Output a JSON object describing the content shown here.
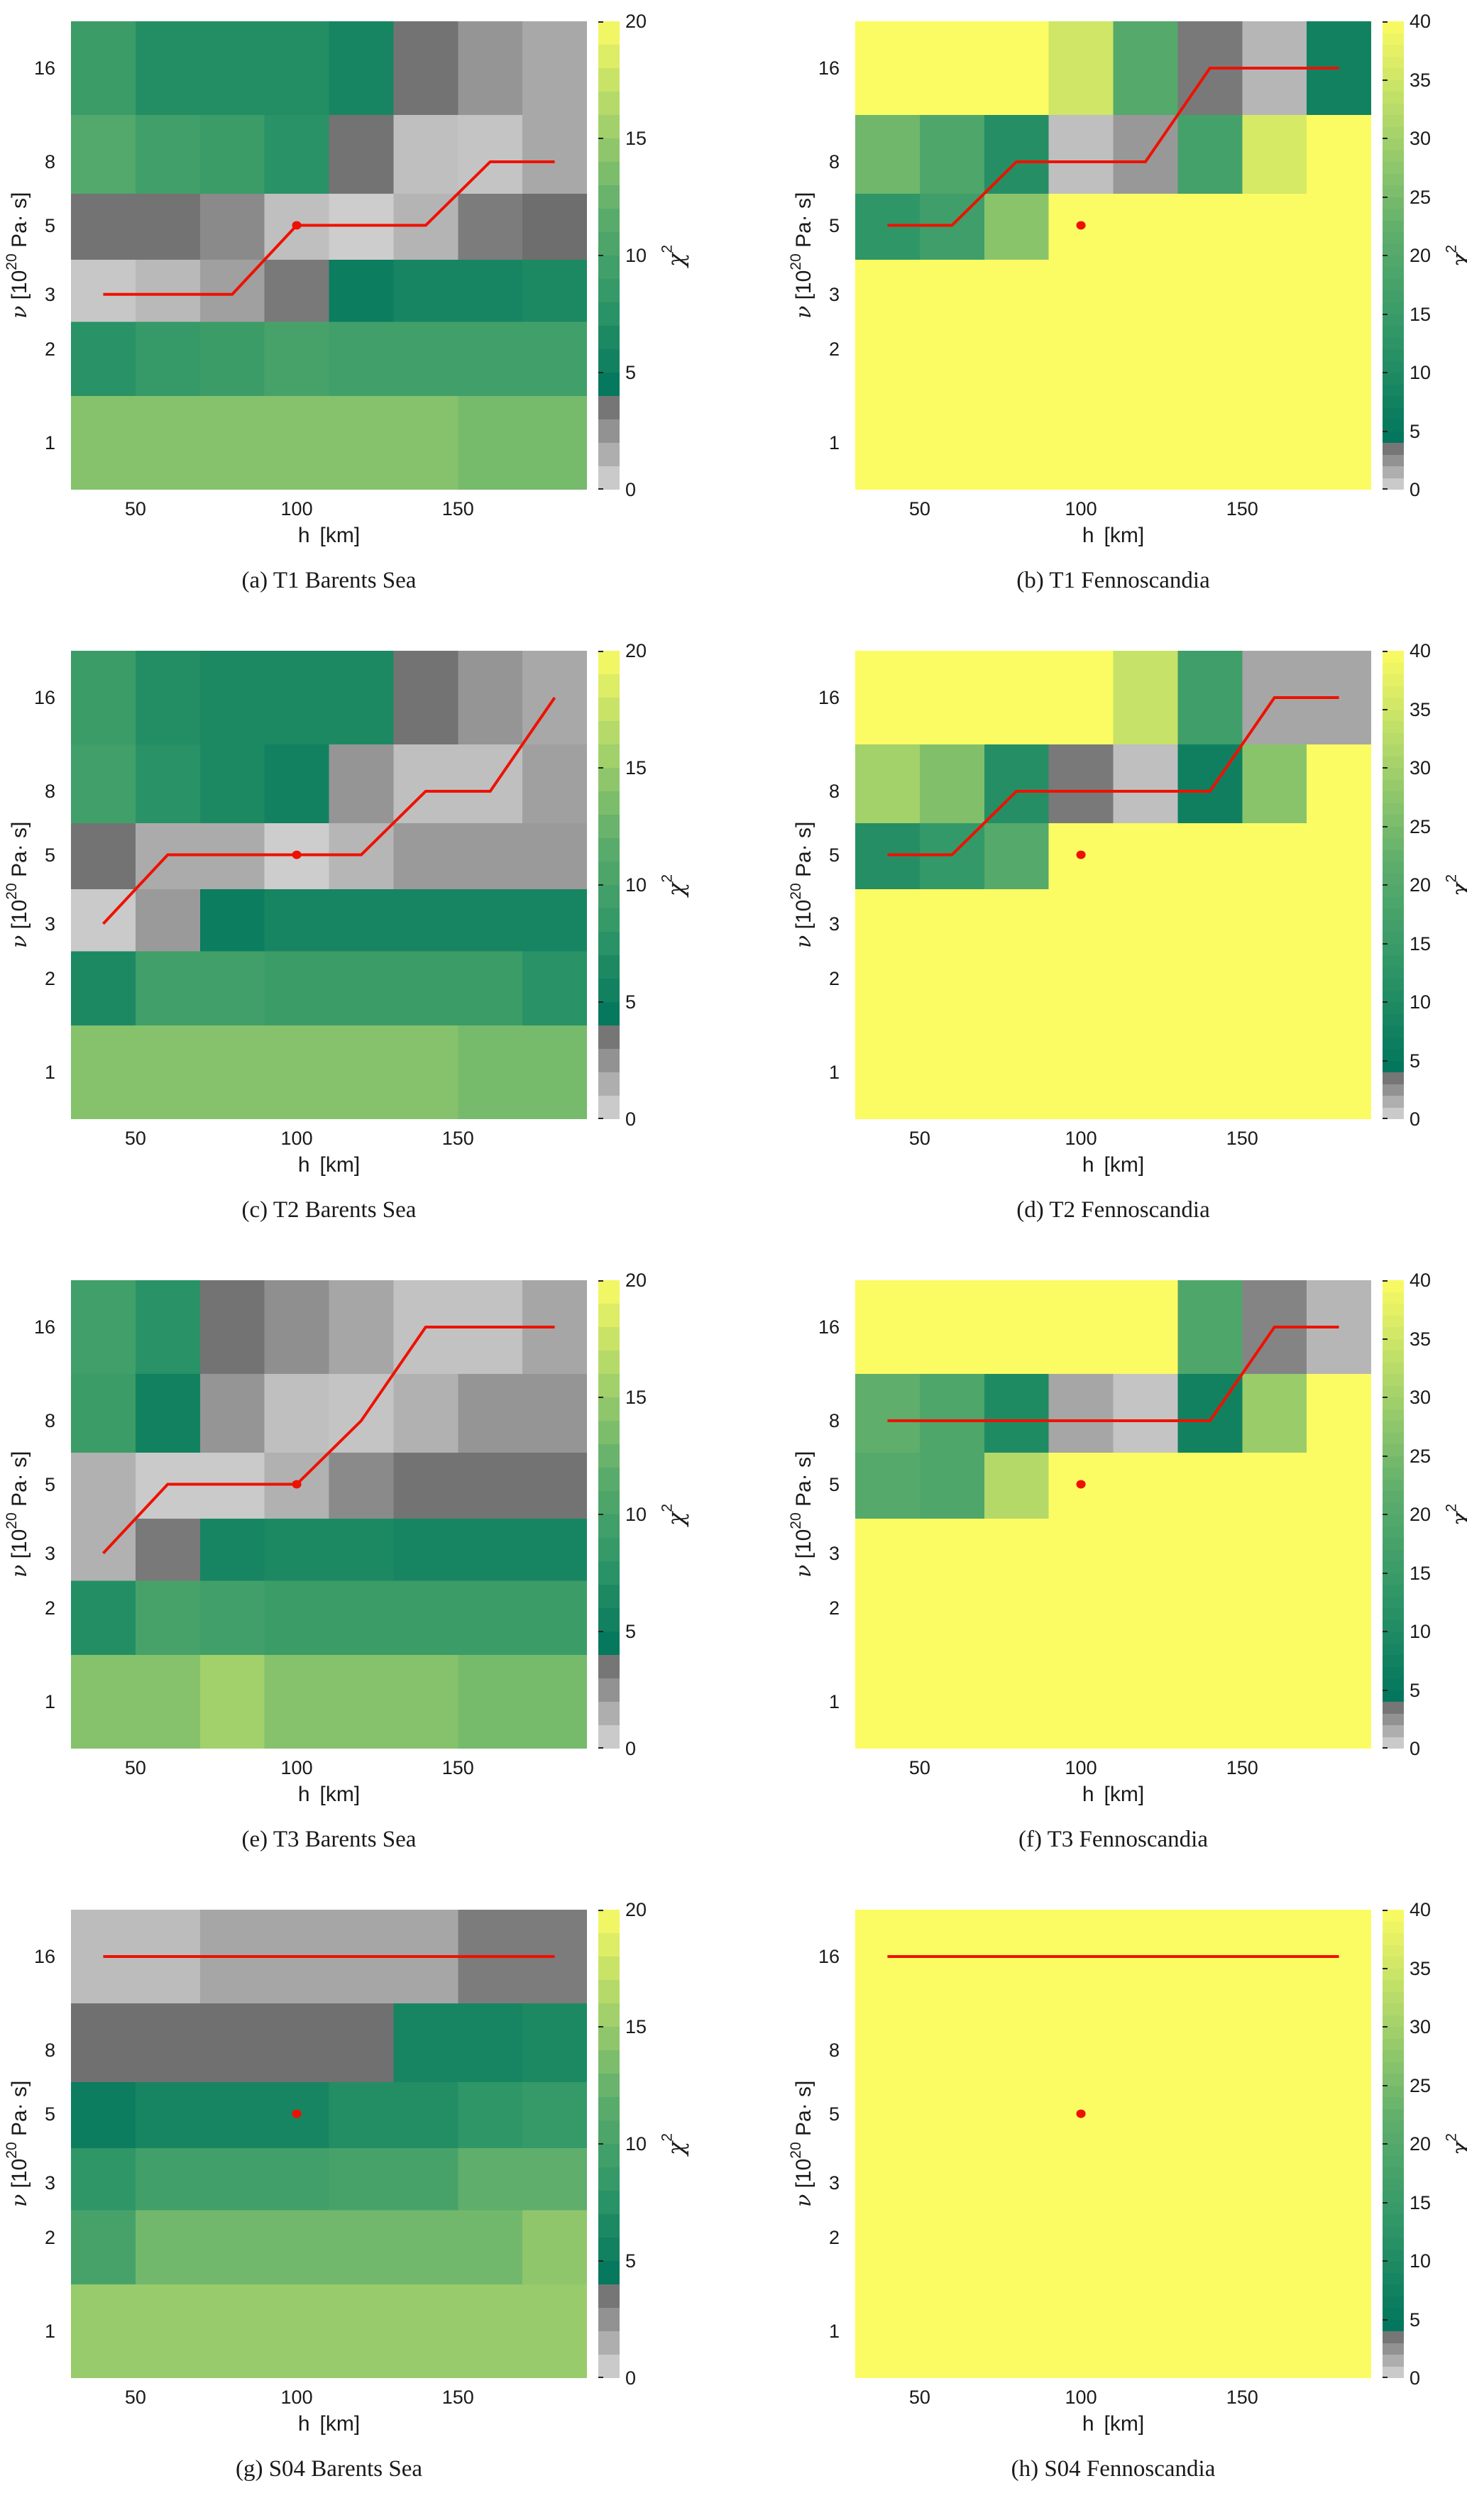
{
  "figure": {
    "description": "Grid of eight chi-squared misfit heatmaps over lithosphere thickness h and mantle viscosity nu, for ice models T1, T2, T3, S04 in regions Barents Sea and Fennoscandia",
    "background": "#ffffff"
  },
  "axes": {
    "xlabel_h": "h",
    "xlabel_unit": "[km]",
    "ylabel_nu": "ν",
    "ylabel_open": " [10",
    "ylabel_exp": "20",
    "ylabel_close": " Pa· s]",
    "xticks": [
      50,
      100,
      150
    ],
    "yticks": [
      16,
      8,
      5,
      3,
      2,
      1
    ],
    "x_range_km": [
      30,
      190
    ],
    "y_scale": "log2, cell edges at midpoints of 1,2,3,5,8,16"
  },
  "colorbar": {
    "label_chi": "χ",
    "label_exp": "2",
    "left_ticks": [
      0,
      5,
      10,
      15,
      20
    ],
    "right_ticks": [
      0,
      5,
      10,
      15,
      20,
      25,
      30,
      35,
      40
    ]
  },
  "colormap": {
    "gray_threshold": 4,
    "gray_low": "#d8d8d8",
    "gray_high": "#686868",
    "green_stops": [
      [
        0,
        "#00745c"
      ],
      [
        0.25,
        "#2f9667"
      ],
      [
        0.5,
        "#5fae6c"
      ],
      [
        0.75,
        "#abd56a"
      ],
      [
        1,
        "#fbfb63"
      ]
    ]
  },
  "colors": {
    "red_line": "#ee1100",
    "red_dot": "#ee1100"
  },
  "chart_data": [
    {
      "type": "heatmap",
      "letter": "a",
      "model": "T1",
      "region": "Barents Sea",
      "caption": "(a) T1 Barents Sea",
      "x": [
        40,
        60,
        80,
        100,
        120,
        140,
        160,
        180
      ],
      "y": [
        16,
        8,
        5,
        3,
        2,
        1
      ],
      "vmax": 20,
      "colorbar_ticks": [
        0,
        5,
        10,
        15,
        20
      ],
      "values": [
        [
          9,
          7,
          7,
          7,
          6,
          3.6,
          2.4,
          1.7
        ],
        [
          11,
          9.5,
          9,
          7.5,
          3.6,
          0.9,
          0.7,
          1.7
        ],
        [
          3.6,
          3.6,
          2.8,
          0.9,
          0.4,
          1.3,
          3.3,
          3.8
        ],
        [
          0.6,
          1.1,
          2.0,
          3.4,
          5,
          6,
          6,
          6.5
        ],
        [
          7.5,
          8.5,
          9,
          10,
          9.5,
          9.5,
          9.5,
          9.5
        ],
        [
          14,
          14,
          14,
          14,
          14,
          14,
          13.2,
          13.2
        ]
      ],
      "best_fit_line": [
        [
          40,
          3
        ],
        [
          80,
          3
        ],
        [
          100,
          5
        ],
        [
          140,
          5
        ],
        [
          160,
          8
        ],
        [
          180,
          8
        ]
      ],
      "best_fit_point": [
        100,
        5
      ]
    },
    {
      "type": "heatmap",
      "letter": "b",
      "model": "T1",
      "region": "Fennoscandia",
      "caption": "(b) T1 Fennoscandia",
      "x": [
        40,
        60,
        80,
        100,
        120,
        140,
        160,
        180
      ],
      "y": [
        16,
        8,
        5,
        3,
        2,
        1
      ],
      "vmax": 40,
      "colorbar_ticks": [
        0,
        5,
        10,
        15,
        20,
        25,
        30,
        35,
        40
      ],
      "values": [
        [
          40,
          40,
          40,
          35,
          20,
          3.4,
          1.2,
          7.5
        ],
        [
          24,
          19,
          11,
          0.9,
          2.3,
          17,
          36,
          40
        ],
        [
          13,
          16,
          27,
          40,
          40,
          40,
          40,
          40
        ],
        [
          40,
          40,
          40,
          40,
          40,
          40,
          40,
          40
        ],
        [
          40,
          40,
          40,
          40,
          40,
          40,
          40,
          40
        ],
        [
          40,
          40,
          40,
          40,
          40,
          40,
          40,
          40
        ]
      ],
      "best_fit_line": [
        [
          40,
          5
        ],
        [
          60,
          5
        ],
        [
          80,
          8
        ],
        [
          120,
          8
        ],
        [
          140,
          16
        ],
        [
          180,
          16
        ]
      ],
      "best_fit_point": [
        100,
        5
      ]
    },
    {
      "type": "heatmap",
      "letter": "c",
      "model": "T2",
      "region": "Barents Sea",
      "caption": "(c) T2 Barents Sea",
      "x": [
        40,
        60,
        80,
        100,
        120,
        140,
        160,
        180
      ],
      "y": [
        16,
        8,
        5,
        3,
        2,
        1
      ],
      "vmax": 20,
      "colorbar_ticks": [
        0,
        5,
        10,
        15,
        20
      ],
      "values": [
        [
          9,
          7,
          6.5,
          6.5,
          6.5,
          3.6,
          2.4,
          1.7
        ],
        [
          9.5,
          7.5,
          6.5,
          5.5,
          2.4,
          0.9,
          0.9,
          2.0
        ],
        [
          3.6,
          1.6,
          1.6,
          0.4,
          1.2,
          2.2,
          2.2,
          2.2
        ],
        [
          0.5,
          2.2,
          5,
          6,
          6,
          6,
          6,
          6
        ],
        [
          6.5,
          9.5,
          9.5,
          9,
          9,
          9,
          9,
          7.5
        ],
        [
          14,
          14,
          14,
          14,
          14,
          14,
          13.2,
          13.2
        ]
      ],
      "best_fit_line": [
        [
          40,
          3
        ],
        [
          60,
          5
        ],
        [
          120,
          5
        ],
        [
          140,
          8
        ],
        [
          160,
          8
        ],
        [
          180,
          16
        ]
      ],
      "best_fit_point": [
        100,
        5
      ]
    },
    {
      "type": "heatmap",
      "letter": "d",
      "model": "T2",
      "region": "Fennoscandia",
      "caption": "(d) T2 Fennoscandia",
      "x": [
        40,
        60,
        80,
        100,
        120,
        140,
        160,
        180
      ],
      "y": [
        16,
        8,
        5,
        3,
        2,
        1
      ],
      "vmax": 40,
      "colorbar_ticks": [
        0,
        5,
        10,
        15,
        20,
        25,
        30,
        35,
        40
      ],
      "values": [
        [
          40,
          40,
          40,
          40,
          34,
          16,
          1.8,
          1.8
        ],
        [
          30,
          26,
          11,
          3.4,
          0.9,
          7,
          27,
          40
        ],
        [
          11,
          14,
          20,
          40,
          40,
          40,
          40,
          40
        ],
        [
          40,
          40,
          40,
          40,
          40,
          40,
          40,
          40
        ],
        [
          40,
          40,
          40,
          40,
          40,
          40,
          40,
          40
        ],
        [
          40,
          40,
          40,
          40,
          40,
          40,
          40,
          40
        ]
      ],
      "best_fit_line": [
        [
          40,
          5
        ],
        [
          60,
          5
        ],
        [
          80,
          8
        ],
        [
          140,
          8
        ],
        [
          160,
          16
        ],
        [
          180,
          16
        ]
      ],
      "best_fit_point": [
        100,
        5
      ]
    },
    {
      "type": "heatmap",
      "letter": "e",
      "model": "T3",
      "region": "Barents Sea",
      "caption": "(e) T3 Barents Sea",
      "x": [
        40,
        60,
        80,
        100,
        120,
        140,
        160,
        180
      ],
      "y": [
        16,
        8,
        5,
        3,
        2,
        1
      ],
      "vmax": 20,
      "colorbar_ticks": [
        0,
        5,
        10,
        15,
        20
      ],
      "values": [
        [
          9.5,
          7.5,
          3.6,
          2.6,
          1.8,
          0.8,
          0.8,
          1.8
        ],
        [
          9,
          5.5,
          2.4,
          0.9,
          0.7,
          1.4,
          2.4,
          2.4
        ],
        [
          1.4,
          0.5,
          0.5,
          1.4,
          2.8,
          3.6,
          3.6,
          3.6
        ],
        [
          1.4,
          3.4,
          6,
          6.5,
          6.5,
          6,
          6,
          6
        ],
        [
          7,
          10,
          9.5,
          9,
          9,
          9,
          9,
          9
        ],
        [
          14,
          14,
          15.5,
          14,
          14,
          14,
          13.2,
          13.2
        ]
      ],
      "best_fit_line": [
        [
          40,
          3
        ],
        [
          60,
          5
        ],
        [
          100,
          5
        ],
        [
          120,
          8
        ],
        [
          140,
          16
        ],
        [
          180,
          16
        ]
      ],
      "best_fit_point": [
        100,
        5
      ]
    },
    {
      "type": "heatmap",
      "letter": "f",
      "model": "T3",
      "region": "Fennoscandia",
      "caption": "(f) T3 Fennoscandia",
      "x": [
        40,
        60,
        80,
        100,
        120,
        140,
        160,
        180
      ],
      "y": [
        16,
        8,
        5,
        3,
        2,
        1
      ],
      "vmax": 40,
      "colorbar_ticks": [
        0,
        5,
        10,
        15,
        20,
        25,
        30,
        35,
        40
      ],
      "values": [
        [
          40,
          40,
          40,
          40,
          40,
          19,
          3.0,
          1.2
        ],
        [
          22,
          19,
          10,
          1.8,
          0.7,
          7.5,
          29,
          40
        ],
        [
          20,
          19,
          32,
          40,
          40,
          40,
          40,
          40
        ],
        [
          40,
          40,
          40,
          40,
          40,
          40,
          40,
          40
        ],
        [
          40,
          40,
          40,
          40,
          40,
          40,
          40,
          40
        ],
        [
          40,
          40,
          40,
          40,
          40,
          40,
          40,
          40
        ]
      ],
      "best_fit_line": [
        [
          40,
          8
        ],
        [
          140,
          8
        ],
        [
          160,
          16
        ],
        [
          180,
          16
        ]
      ],
      "best_fit_point": [
        100,
        5
      ]
    },
    {
      "type": "heatmap",
      "letter": "g",
      "model": "S04",
      "region": "Barents Sea",
      "caption": "(g) S04 Barents Sea",
      "x": [
        40,
        60,
        80,
        100,
        120,
        140,
        160,
        180
      ],
      "y": [
        16,
        8,
        5,
        3,
        2,
        1
      ],
      "vmax": 20,
      "colorbar_ticks": [
        0,
        5,
        10,
        15,
        20
      ],
      "values": [
        [
          1.0,
          1.0,
          1.8,
          1.8,
          1.8,
          1.8,
          3.3,
          3.3
        ],
        [
          3.7,
          3.7,
          3.7,
          3.7,
          3.7,
          6,
          6,
          6.5
        ],
        [
          5,
          6,
          6,
          6,
          7,
          7,
          8,
          8.5
        ],
        [
          8,
          9.5,
          9.5,
          9.5,
          10,
          10,
          12,
          12
        ],
        [
          10,
          13,
          13,
          13,
          13,
          13,
          13,
          14.5
        ],
        [
          15,
          15,
          15,
          15,
          15,
          15,
          15,
          15
        ]
      ],
      "best_fit_line": [
        [
          40,
          16
        ],
        [
          180,
          16
        ]
      ],
      "best_fit_point": [
        100,
        5
      ]
    },
    {
      "type": "heatmap",
      "letter": "h",
      "model": "S04",
      "region": "Fennoscandia",
      "caption": "(h) S04 Fennoscandia",
      "x": [
        40,
        60,
        80,
        100,
        120,
        140,
        160,
        180
      ],
      "y": [
        16,
        8,
        5,
        3,
        2,
        1
      ],
      "vmax": 40,
      "colorbar_ticks": [
        0,
        5,
        10,
        15,
        20,
        25,
        30,
        35,
        40
      ],
      "values": [
        [
          40,
          40,
          40,
          40,
          40,
          40,
          40,
          40
        ],
        [
          40,
          40,
          40,
          40,
          40,
          40,
          40,
          40
        ],
        [
          40,
          40,
          40,
          40,
          40,
          40,
          40,
          40
        ],
        [
          40,
          40,
          40,
          40,
          40,
          40,
          40,
          40
        ],
        [
          40,
          40,
          40,
          40,
          40,
          40,
          40,
          40
        ],
        [
          40,
          40,
          40,
          40,
          40,
          40,
          40,
          40
        ]
      ],
      "best_fit_line": [
        [
          40,
          16
        ],
        [
          180,
          16
        ]
      ],
      "best_fit_point": [
        100,
        5
      ]
    }
  ]
}
